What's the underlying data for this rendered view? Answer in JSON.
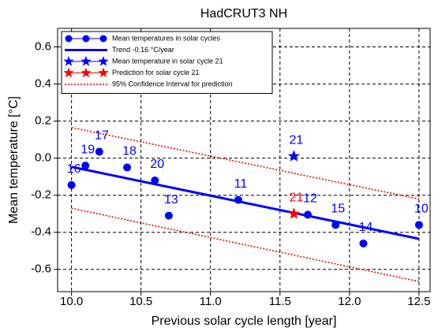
{
  "chart_data": {
    "type": "scatter",
    "title": "HadCRUT3 NH",
    "xlabel": "Previous solar cycle length [year]",
    "ylabel": "Mean temperature [°C]",
    "xlim": [
      9.9,
      12.58
    ],
    "ylim": [
      -0.72,
      0.7
    ],
    "xticks": [
      {
        "value": 10,
        "label": "10.0"
      },
      10.5,
      {
        "value": 11,
        "label": "11.0"
      },
      11.5,
      {
        "value": 12,
        "label": "12.0"
      },
      12.5
    ],
    "yticks": [
      -0.6,
      -0.4,
      -0.2,
      {
        "value": 0,
        "label": "0.0"
      },
      0.2,
      0.4,
      0.6
    ],
    "grid": true,
    "legend": "upper left",
    "series": [
      {
        "name": "Mean temperatures in solar cycles",
        "color": "#0000ff",
        "marker": "circle",
        "x": [
          10.0,
          10.1,
          10.2,
          10.4,
          10.6,
          10.7,
          11.2,
          11.7,
          11.9,
          12.1,
          12.5
        ],
        "values": [
          -0.145,
          -0.04,
          0.035,
          -0.05,
          -0.12,
          -0.31,
          -0.225,
          -0.305,
          -0.36,
          -0.46,
          -0.36
        ],
        "labels": [
          "16",
          "19",
          "17",
          "18",
          "20",
          "13",
          "11",
          "12",
          "15",
          "14",
          "10"
        ]
      },
      {
        "name": "Trend -0.16 °C/year",
        "color": "#0000ff",
        "style": "solid",
        "x": [
          10.0,
          12.5
        ],
        "values": [
          -0.047,
          -0.435
        ]
      },
      {
        "name": "Mean temperature in solar cycle 21",
        "color": "#0000ff",
        "marker": "star",
        "x": [
          11.6
        ],
        "values": [
          0.01
        ],
        "labels": [
          "21"
        ]
      },
      {
        "name": "Prediction for solar cycle 21",
        "color": "#ff0000",
        "marker": "star",
        "x": [
          11.6
        ],
        "values": [
          -0.3
        ],
        "labels": [
          "21"
        ]
      },
      {
        "name": "95% Confidence Interval for prediction",
        "color": "#dd0000",
        "style": "dotted",
        "x": [
          10.0,
          12.5,
          null,
          10.0,
          12.5
        ],
        "values": [
          0.165,
          -0.22,
          null,
          -0.27,
          -0.665
        ]
      }
    ]
  }
}
